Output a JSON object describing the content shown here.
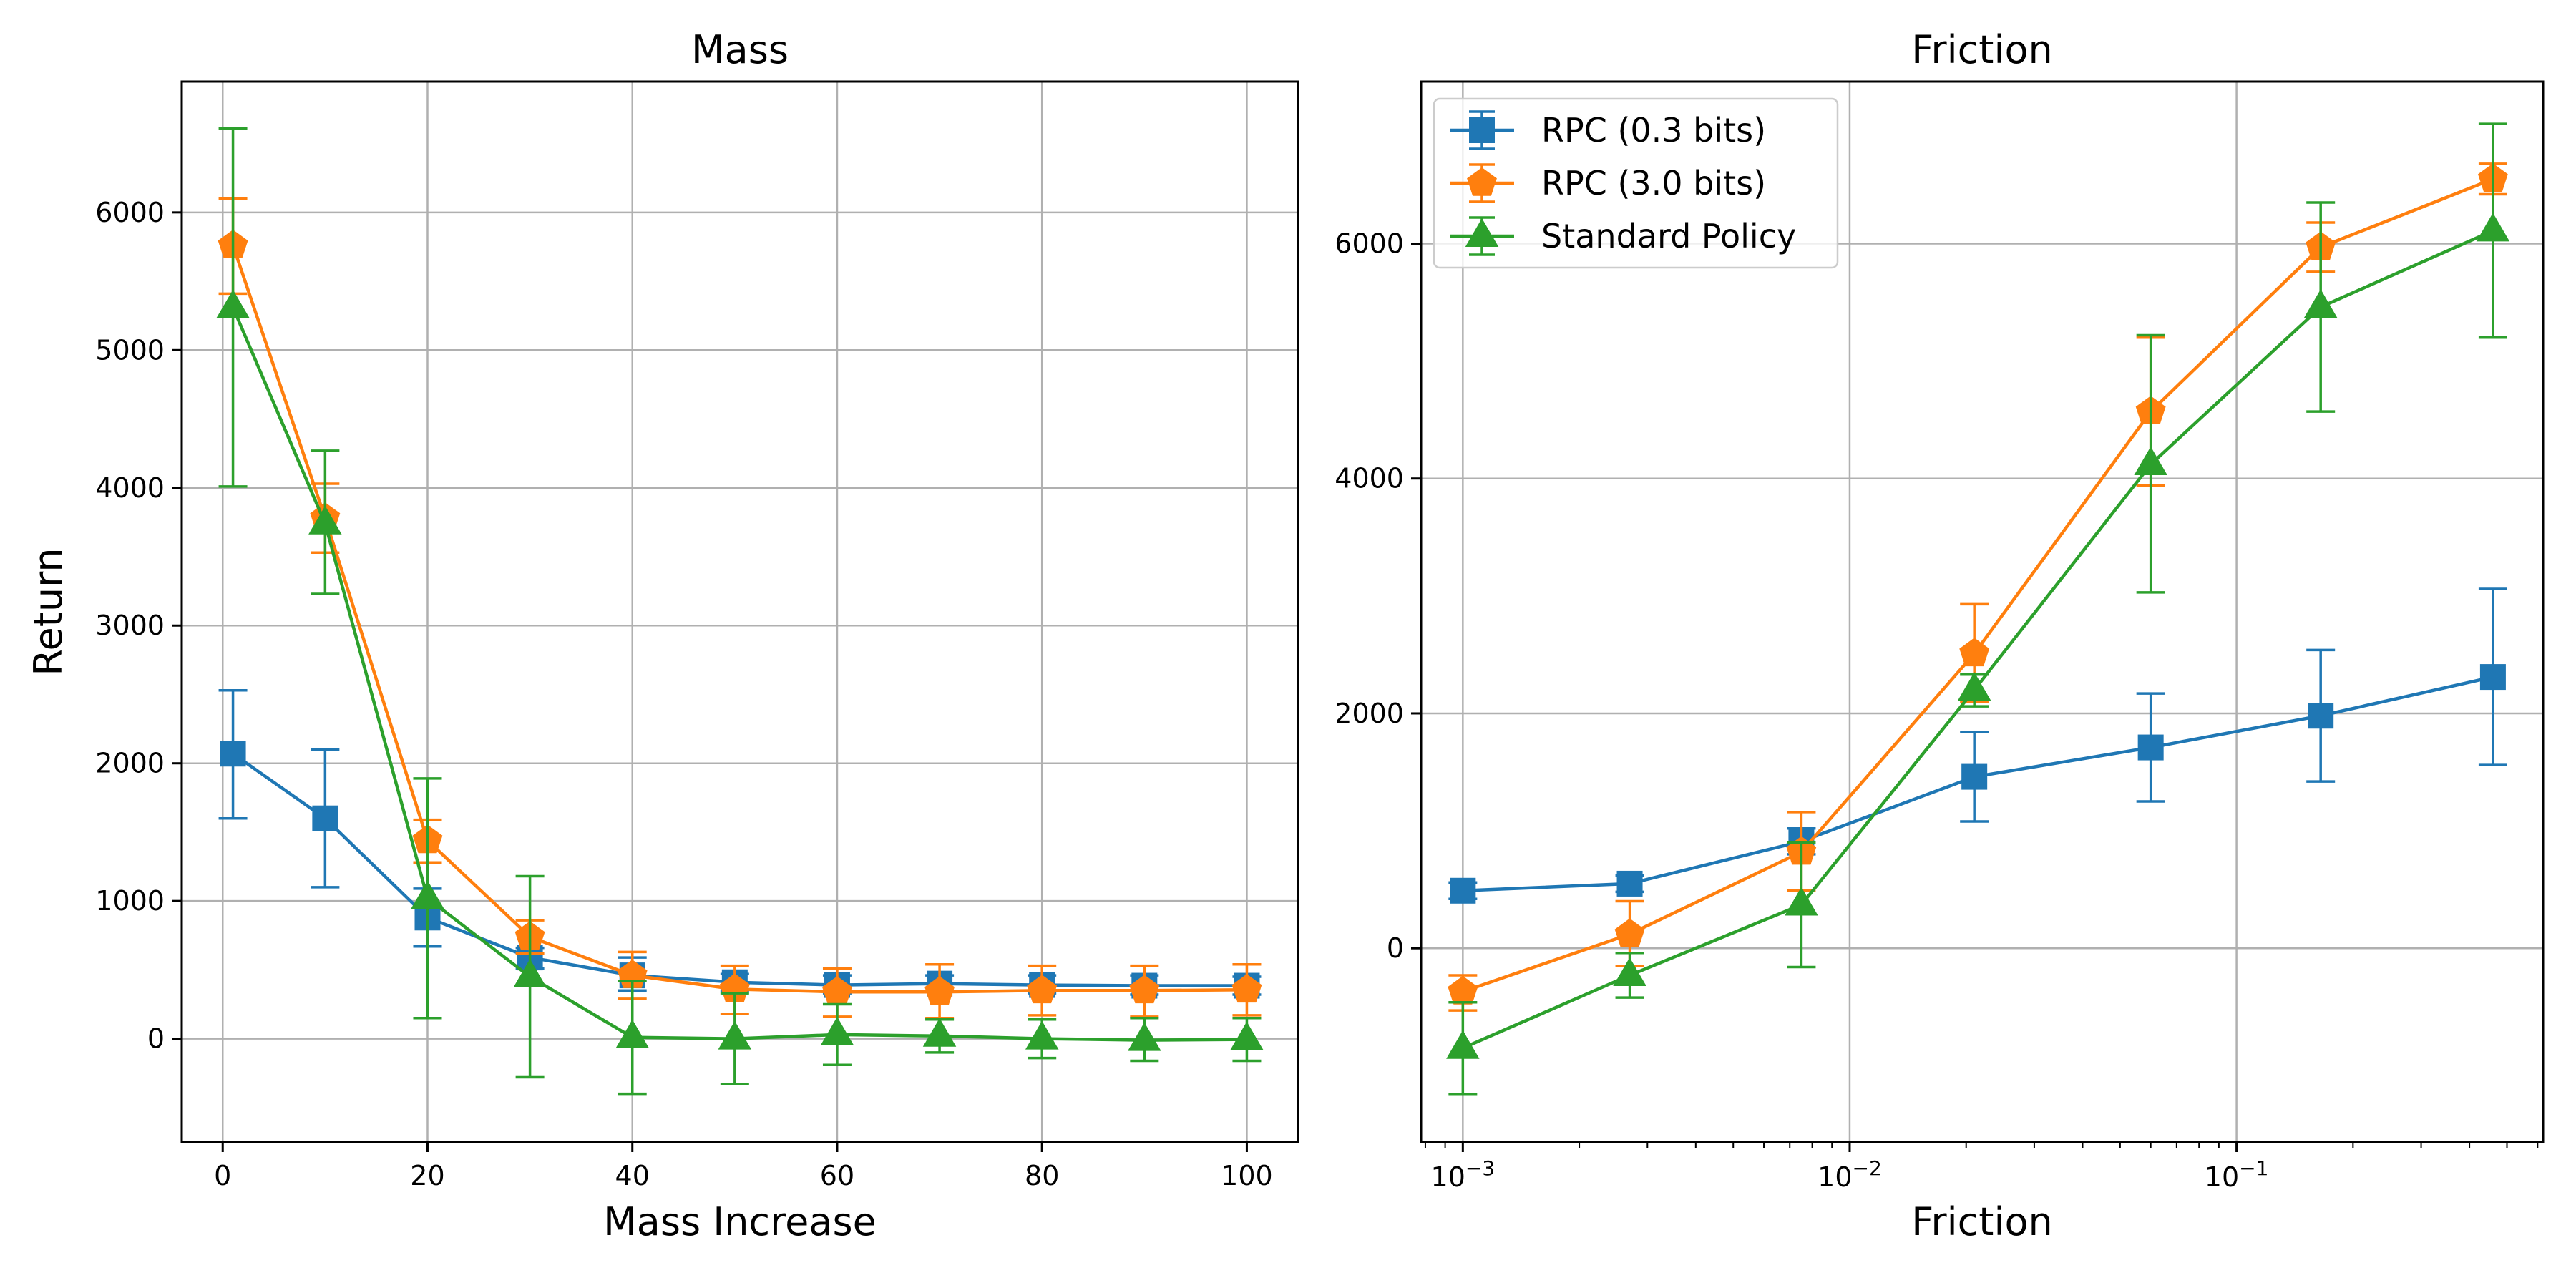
{
  "colors": {
    "blue": "#1f77b4",
    "orange": "#ff7f0e",
    "green": "#2ca02c"
  },
  "legend": {
    "placement": "top-left",
    "panel": "right"
  },
  "chart_data": [
    {
      "type": "line",
      "title": "Mass",
      "xlabel": "Mass Increase",
      "ylabel": "Return",
      "xscale": "linear",
      "xlim": [
        -4,
        105
      ],
      "ylim": [
        -750,
        6950
      ],
      "xticks": [
        0,
        20,
        40,
        60,
        80,
        100
      ],
      "yticks": [
        0,
        1000,
        2000,
        3000,
        4000,
        5000,
        6000
      ],
      "grid": true,
      "x": [
        1,
        10,
        20,
        30,
        40,
        50,
        60,
        70,
        80,
        90,
        100
      ],
      "series": [
        {
          "name": "RPC (0.3 bits)",
          "color": "#1f77b4",
          "marker": "square",
          "values": [
            2070,
            1600,
            880,
            590,
            460,
            410,
            390,
            400,
            390,
            385,
            385
          ],
          "err_low": [
            1600,
            1100,
            670,
            510,
            350,
            350,
            330,
            340,
            330,
            320,
            320
          ],
          "err_high": [
            2530,
            2100,
            1090,
            660,
            590,
            470,
            460,
            460,
            460,
            460,
            450
          ]
        },
        {
          "name": "RPC (3.0 bits)",
          "color": "#ff7f0e",
          "marker": "pentagon",
          "values": [
            5760,
            3780,
            1440,
            740,
            460,
            360,
            340,
            340,
            350,
            350,
            355
          ],
          "err_low": [
            5410,
            3530,
            1280,
            620,
            290,
            180,
            160,
            150,
            170,
            160,
            170
          ],
          "err_high": [
            6100,
            4030,
            1590,
            860,
            630,
            530,
            510,
            540,
            530,
            530,
            540
          ]
        },
        {
          "name": "Standard Policy",
          "color": "#2ca02c",
          "marker": "triangle",
          "values": [
            5310,
            3740,
            1020,
            450,
            10,
            0,
            30,
            20,
            0,
            -10,
            -5
          ],
          "err_low": [
            4010,
            3230,
            150,
            -280,
            -400,
            -330,
            -190,
            -100,
            -140,
            -160,
            -160
          ],
          "err_high": [
            6610,
            4270,
            1890,
            1180,
            420,
            330,
            250,
            140,
            140,
            150,
            150
          ]
        }
      ]
    },
    {
      "type": "line",
      "title": "Friction",
      "xlabel": "Friction",
      "ylabel": "",
      "xscale": "log",
      "xlim": [
        0.00078,
        0.62
      ],
      "ylim": [
        -1650,
        7380
      ],
      "xticks": [
        0.001,
        0.01,
        0.1
      ],
      "xtick_labels": [
        {
          "base": "10",
          "exp": "−3"
        },
        {
          "base": "10",
          "exp": "−2"
        },
        {
          "base": "10",
          "exp": "−1"
        }
      ],
      "yticks": [
        0,
        2000,
        4000,
        6000
      ],
      "grid": true,
      "x": [
        0.001,
        0.0027,
        0.0075,
        0.021,
        0.06,
        0.165,
        0.46
      ],
      "series": [
        {
          "name": "RPC (0.3 bits)",
          "color": "#1f77b4",
          "marker": "square",
          "values": [
            490,
            550,
            910,
            1460,
            1710,
            1980,
            2310
          ],
          "err_low": [
            420,
            480,
            800,
            1080,
            1250,
            1420,
            1560
          ],
          "err_high": [
            560,
            620,
            1020,
            1840,
            2170,
            2540,
            3060
          ]
        },
        {
          "name": "RPC (3.0 bits)",
          "color": "#ff7f0e",
          "marker": "pentagon",
          "values": [
            -370,
            120,
            820,
            2510,
            4570,
            5970,
            6550
          ],
          "err_low": [
            -530,
            -150,
            490,
            2100,
            3940,
            5760,
            6420
          ],
          "err_high": [
            -230,
            400,
            1160,
            2930,
            5200,
            6180,
            6680
          ]
        },
        {
          "name": "Standard Policy",
          "color": "#2ca02c",
          "marker": "triangle",
          "values": [
            -850,
            -230,
            370,
            2200,
            4120,
            5460,
            6110
          ],
          "err_low": [
            -1240,
            -420,
            -160,
            2060,
            3030,
            4570,
            5200
          ],
          "err_high": [
            -460,
            -40,
            900,
            2330,
            5220,
            6350,
            7020
          ]
        }
      ]
    }
  ]
}
